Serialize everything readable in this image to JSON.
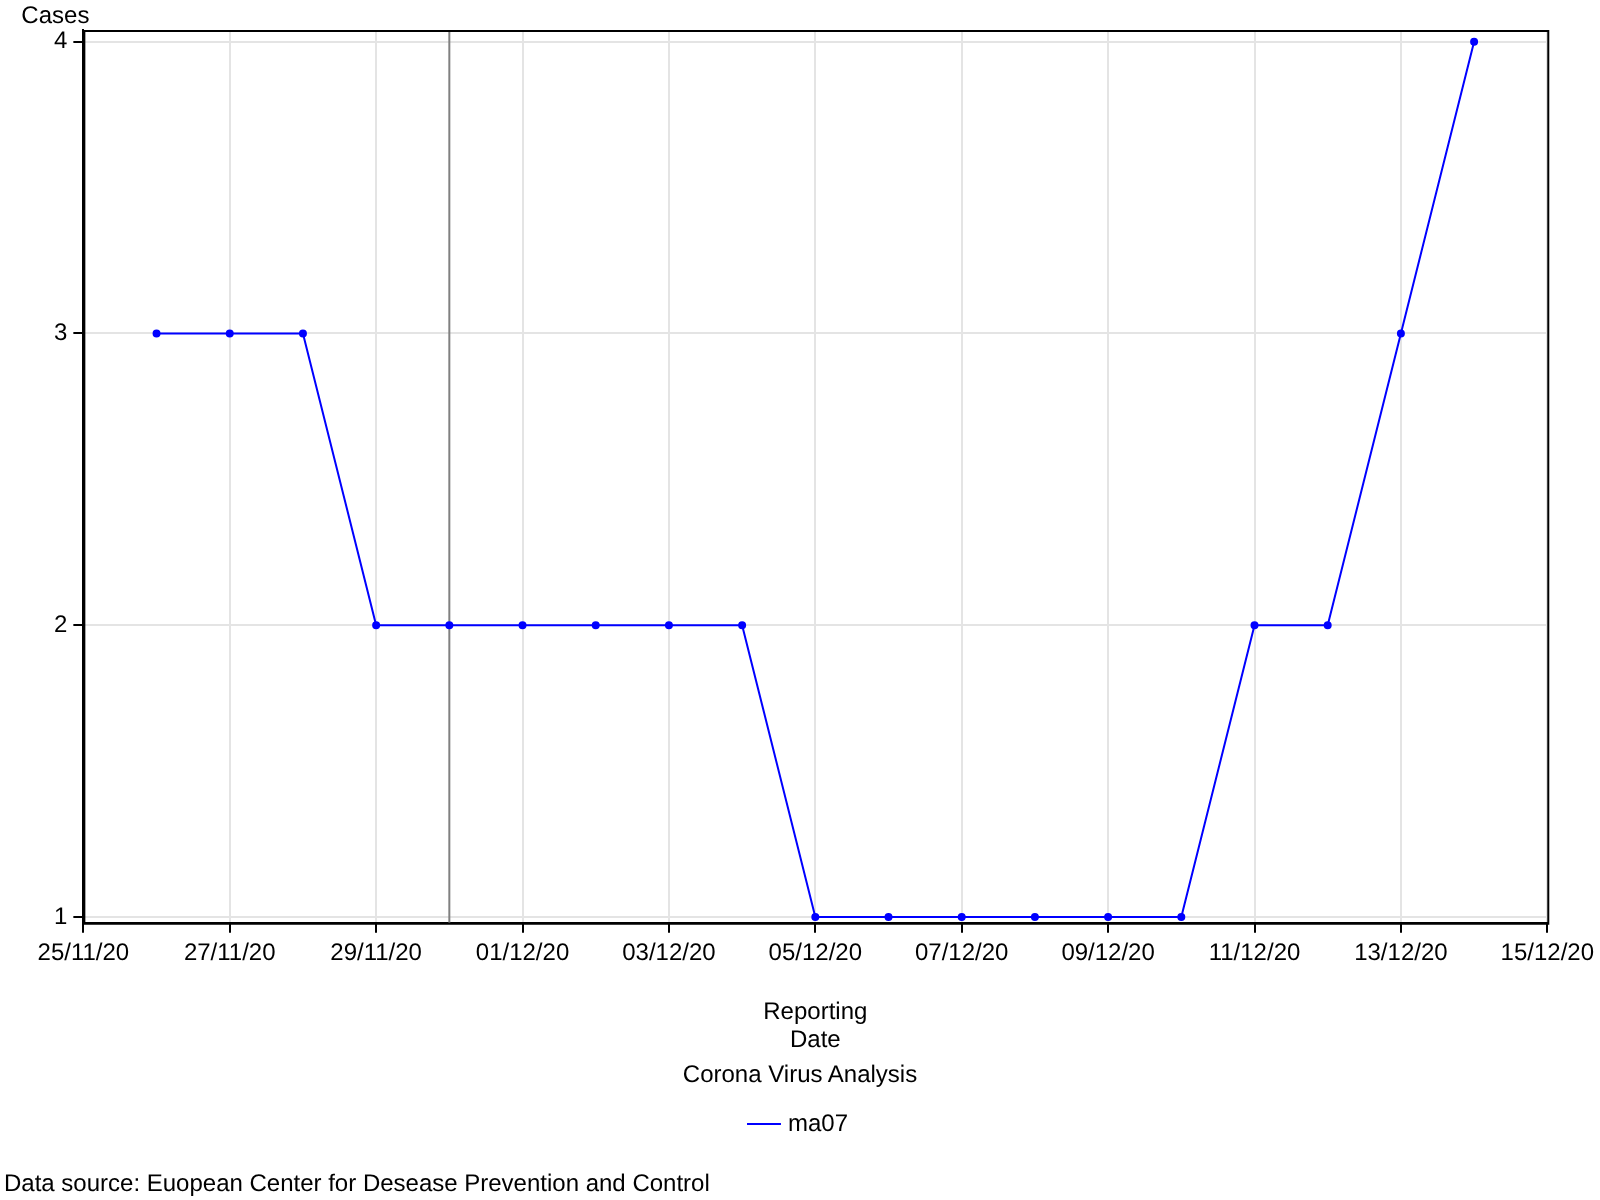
{
  "chart_data": {
    "type": "line",
    "xlabel": "Reporting Date",
    "ylabel": "Cases",
    "legend_title": "Corona Virus Analysis",
    "legend": "bottom",
    "grid": true,
    "marker": "circle",
    "line_style": "solid",
    "x": [
      "--11-26",
      "--11-27",
      "--11-28",
      "--11-29",
      "--11-30",
      "--12-01",
      "--12-02",
      "--12-03",
      "--12-04",
      "--12-05",
      "--12-06",
      "--12-07",
      "--12-08",
      "--12-09",
      "--12-10",
      "--12-11",
      "--12-12",
      "--12-13",
      "--12-14"
    ],
    "series": [
      {
        "name": "ma07",
        "color": "#0000ff",
        "values": [
          3,
          3,
          3,
          2,
          2,
          2,
          2,
          2,
          2,
          1,
          1,
          1,
          1,
          1,
          1,
          2,
          2,
          3,
          4
        ]
      }
    ],
    "xlim": [
      "--11-25",
      "--12-15"
    ],
    "xticks": [
      {
        "value": "--11-25",
        "label": "25/11/20"
      },
      {
        "value": "--11-27",
        "label": "27/11/20"
      },
      {
        "value": "--11-29",
        "label": "29/11/20"
      },
      {
        "value": "--12-01",
        "label": "01/12/20"
      },
      {
        "value": "--12-03",
        "label": "03/12/20"
      },
      {
        "value": "--12-05",
        "label": "05/12/20"
      },
      {
        "value": "--12-07",
        "label": "07/12/20"
      },
      {
        "value": "--12-09",
        "label": "09/12/20"
      },
      {
        "value": "--12-11",
        "label": "11/12/20"
      },
      {
        "value": "--12-13",
        "label": "13/12/20"
      },
      {
        "value": "--12-15",
        "label": "15/12/20"
      }
    ],
    "ylim": [
      0.98,
      4.04
    ],
    "yticks": [
      1,
      2,
      3,
      4
    ],
    "ref_lines": [
      {
        "axis": "x",
        "value": "--11-30",
        "color": "#808080"
      }
    ],
    "annotations": [
      "Data source: Euopean Center for Desease Prevention and Control"
    ]
  }
}
